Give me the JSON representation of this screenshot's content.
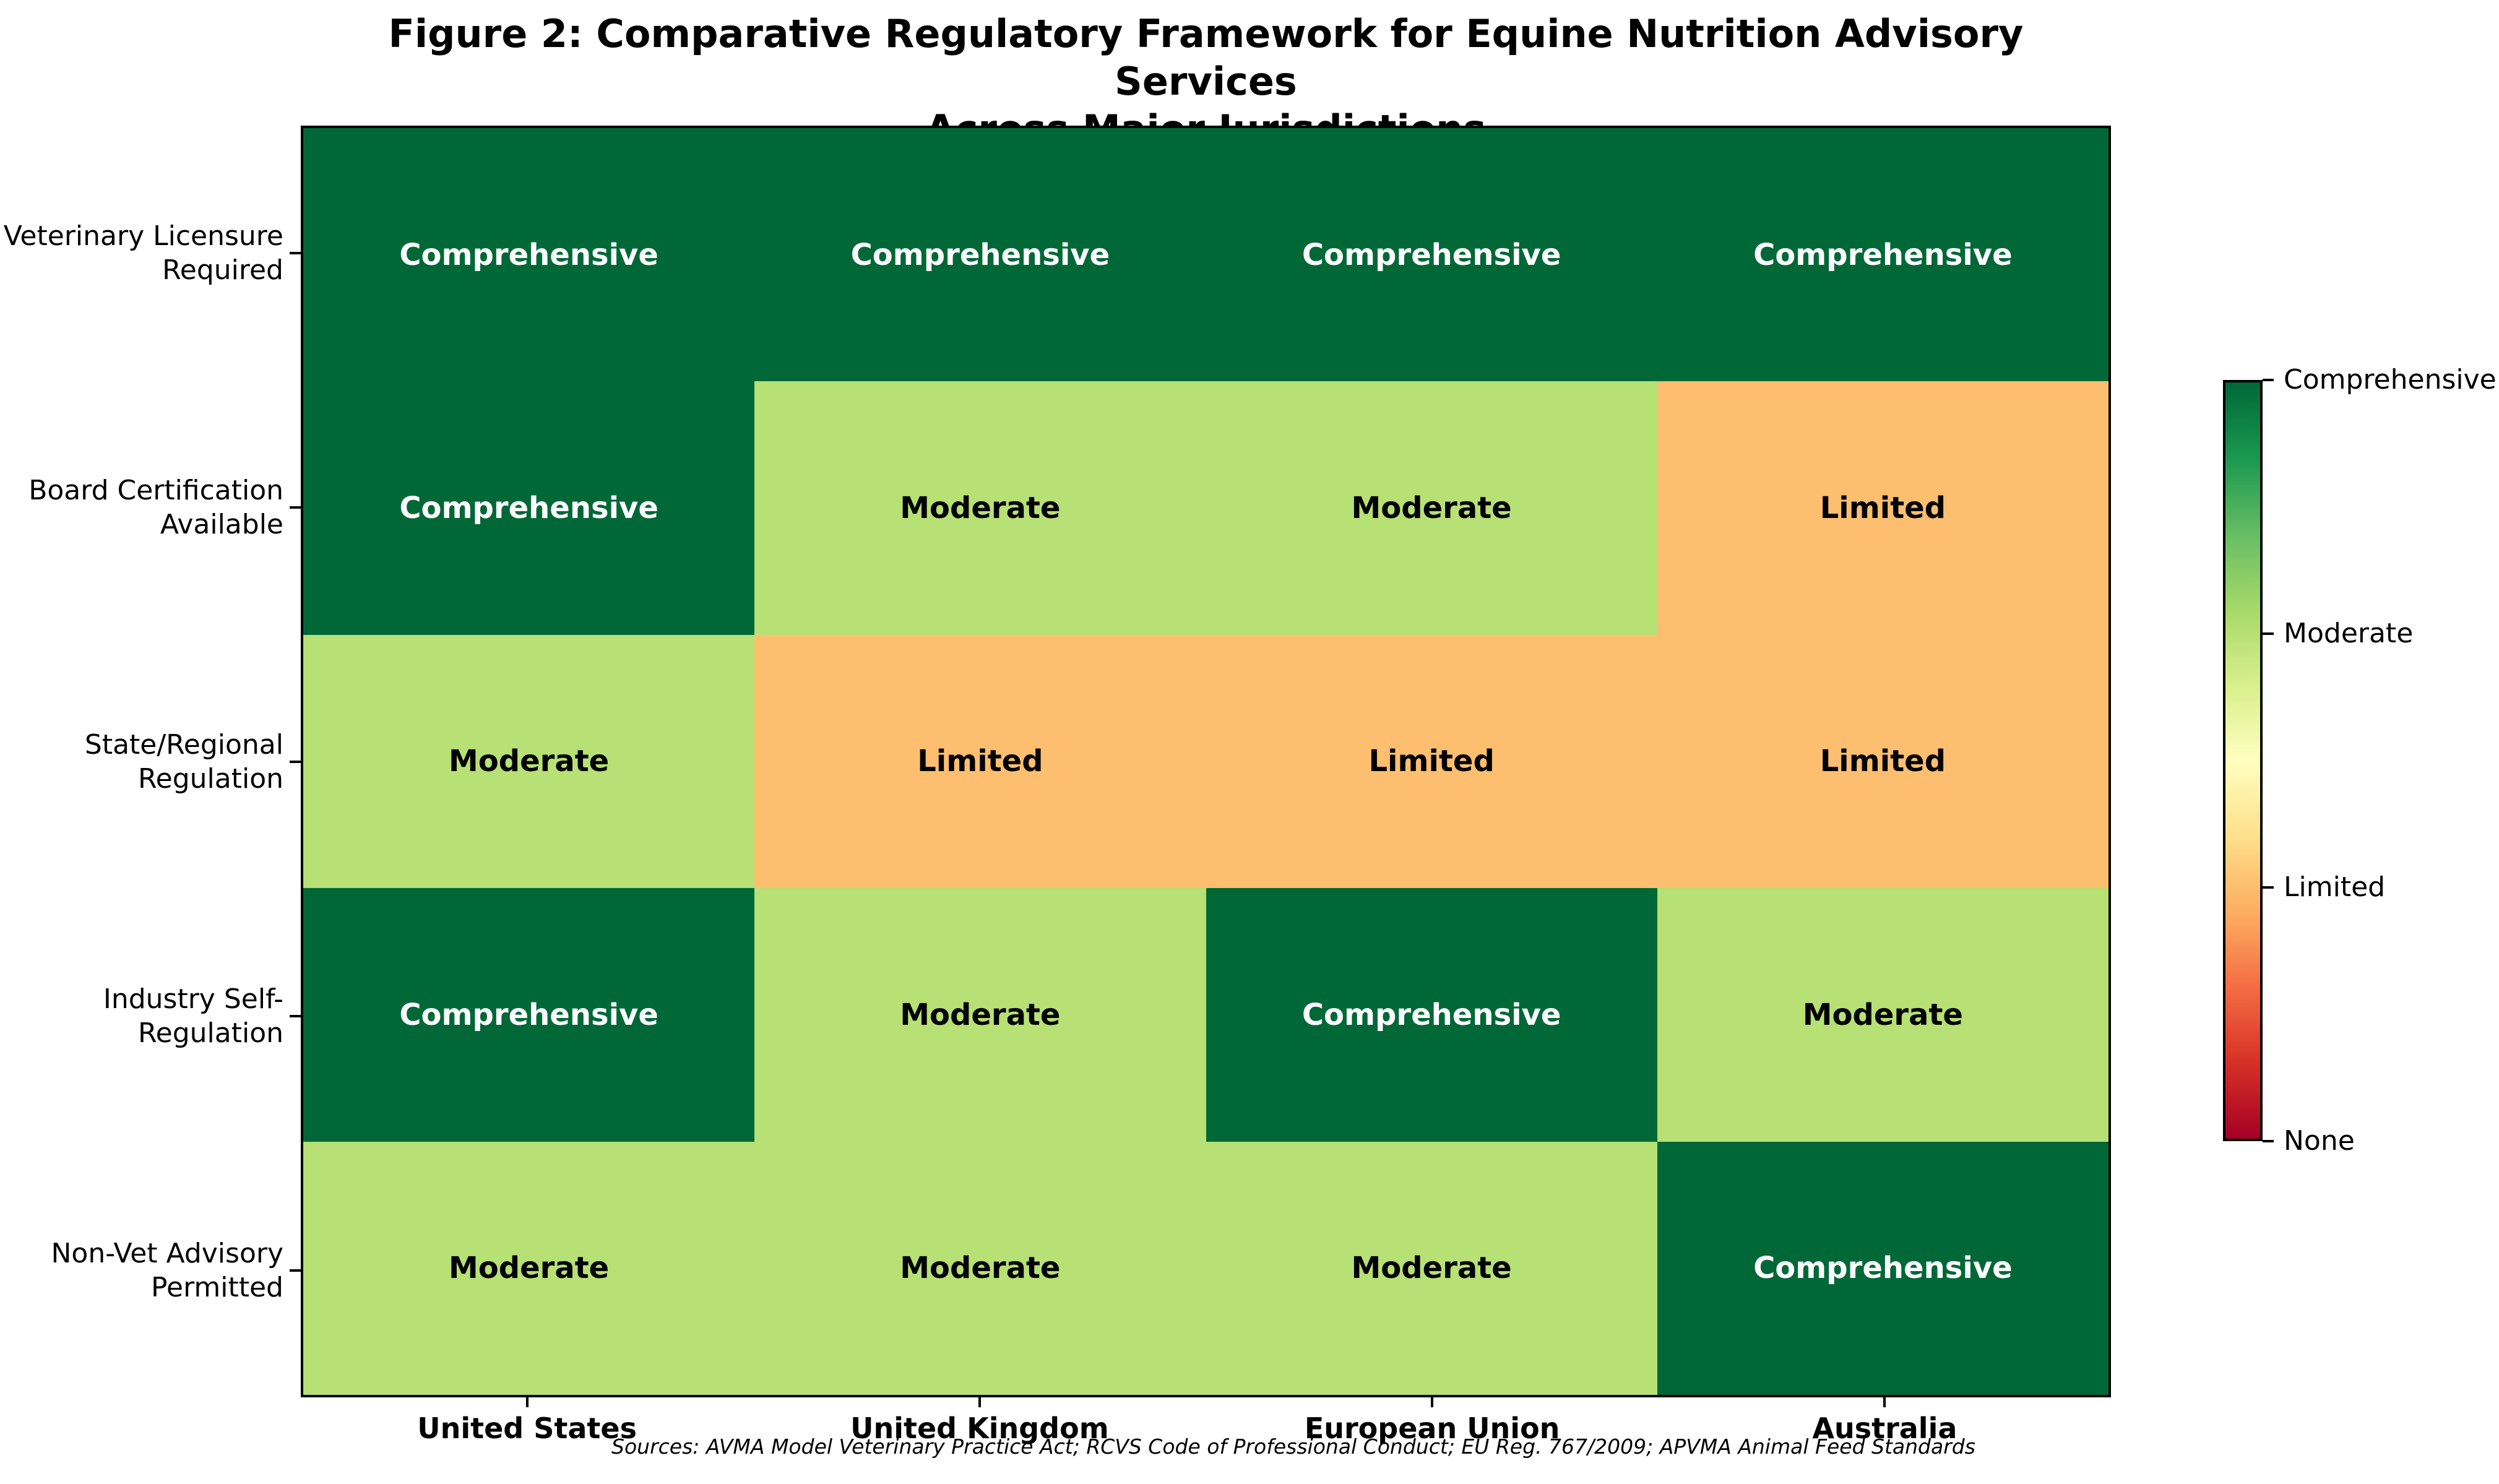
{
  "title": "Figure 2: Comparative Regulatory Framework for Equine Nutrition Advisory Services\nAcross Major Jurisdictions",
  "source_note": "Sources: AVMA Model Veterinary Practice Act; RCVS Code of Professional Conduct; EU Reg. 767/2009; APVMA Animal Feed Standards",
  "chart_data": {
    "type": "heatmap",
    "title": "Figure 2: Comparative Regulatory Framework for Equine Nutrition Advisory Services Across Major Jurisdictions",
    "columns": [
      "United States",
      "United Kingdom",
      "European Union",
      "Australia"
    ],
    "rows": [
      "Veterinary Licensure\nRequired",
      "Board Certification\nAvailable",
      "State/Regional\nRegulation",
      "Industry Self-\nRegulation",
      "Non-Vet Advisory\nPermitted"
    ],
    "cells": [
      [
        "Comprehensive",
        "Comprehensive",
        "Comprehensive",
        "Comprehensive"
      ],
      [
        "Comprehensive",
        "Moderate",
        "Moderate",
        "Limited"
      ],
      [
        "Moderate",
        "Limited",
        "Limited",
        "Limited"
      ],
      [
        "Comprehensive",
        "Moderate",
        "Comprehensive",
        "Moderate"
      ],
      [
        "Moderate",
        "Moderate",
        "Moderate",
        "Comprehensive"
      ]
    ],
    "values": [
      [
        3,
        3,
        3,
        3
      ],
      [
        3,
        2,
        2,
        1
      ],
      [
        2,
        1,
        1,
        1
      ],
      [
        3,
        2,
        3,
        2
      ],
      [
        2,
        2,
        2,
        3
      ]
    ],
    "value_scale": {
      "None": 0,
      "Limited": 1,
      "Moderate": 2,
      "Comprehensive": 3
    },
    "legend_position": "right",
    "colorbar_ticks": [
      "Comprehensive",
      "Moderate",
      "Limited",
      "None"
    ],
    "colormap": "RdYlGn",
    "cell_colors": {
      "Comprehensive": "#006837",
      "Moderate": "#b7e075",
      "Limited": "#fdbf6f",
      "None": "#a50026"
    },
    "cell_text_colors": {
      "Comprehensive": "#ffffff",
      "Moderate": "#000000",
      "Limited": "#000000",
      "None": "#ffffff"
    },
    "gradient_stops": [
      "#006837",
      "#1a9850",
      "#66bd63",
      "#a6d96a",
      "#d9ef8b",
      "#ffffbf",
      "#fee08b",
      "#fdae61",
      "#f46d43",
      "#d73027",
      "#a50026"
    ]
  }
}
